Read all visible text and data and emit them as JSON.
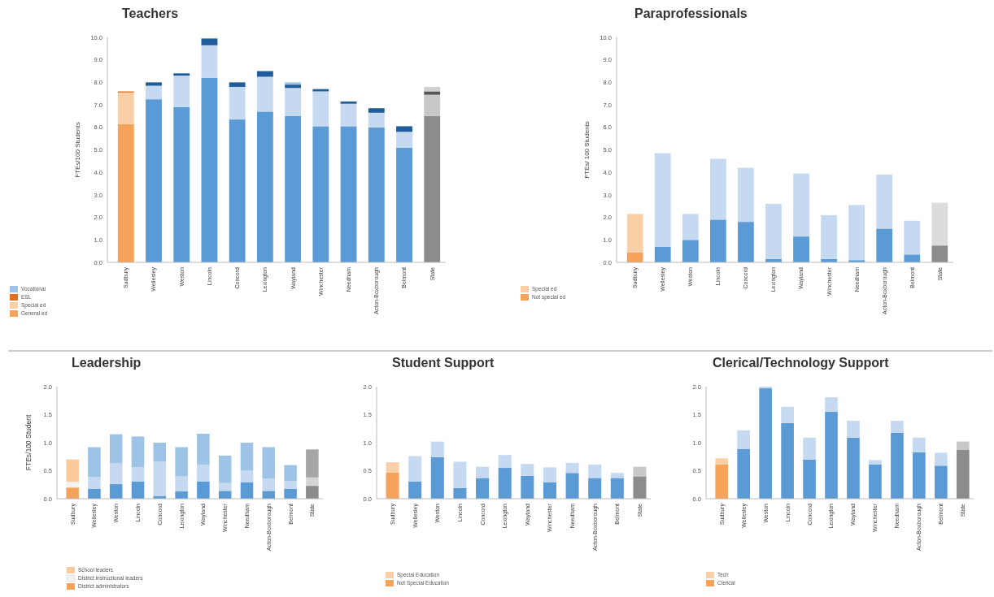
{
  "chart_data": [
    {
      "type": "bar",
      "title": "Teachers",
      "ylabel": "FTEs/100 Students",
      "stacked": true,
      "legend": "bottom left",
      "categories": [
        "Sudbury",
        "Wellesley",
        "Weston",
        "Lincoln",
        "Concord",
        "Lexington",
        "Wayland",
        "Winchester",
        "Needham",
        "Acton-Boxborough",
        "Belmont",
        "State"
      ],
      "ylim": [
        0,
        10
      ],
      "yticks": [
        {
          "value": 0,
          "label": "0.0"
        },
        {
          "value": 1,
          "label": "1.0"
        },
        {
          "value": 2,
          "label": "2.0"
        },
        {
          "value": 3,
          "label": "3.0"
        },
        {
          "value": 4,
          "label": "4.0"
        },
        {
          "value": 5,
          "label": "5.0"
        },
        {
          "value": 6,
          "label": "6.0"
        },
        {
          "value": 7,
          "label": "7.0"
        },
        {
          "value": 8,
          "label": "8.0"
        },
        {
          "value": 9,
          "label": "9.0"
        },
        {
          "value": 10,
          "label": "10.0"
        }
      ],
      "series": [
        {
          "name": "General ed",
          "color": "#f5a25a",
          "colors": [
            "#f5a25a",
            "#5b9bd5",
            "#5b9bd5",
            "#5b9bd5",
            "#5b9bd5",
            "#5b9bd5",
            "#5b9bd5",
            "#5b9bd5",
            "#5b9bd5",
            "#5b9bd5",
            "#5b9bd5",
            "#8c8c8c"
          ],
          "values": [
            6.15,
            7.25,
            6.9,
            8.2,
            6.35,
            6.7,
            6.5,
            6.05,
            6.05,
            6.0,
            5.1,
            6.5
          ]
        },
        {
          "name": "Special ed",
          "color": "#fbcfa6",
          "colors": [
            "#fbcfa6",
            "#c5daf0",
            "#c5daf0",
            "#c5daf0",
            "#c5daf0",
            "#c5daf0",
            "#c5daf0",
            "#c5daf0",
            "#c5daf0",
            "#c5daf0",
            "#c5daf0",
            "#c8c8c8"
          ],
          "values": [
            1.4,
            0.6,
            1.4,
            1.45,
            1.45,
            1.55,
            1.25,
            1.55,
            1.0,
            0.65,
            0.7,
            0.95
          ]
        },
        {
          "name": "ESL",
          "color": "#e0701e",
          "colors": [
            "#e0701e",
            "#1f5c99",
            "#1f5c99",
            "#1f5c99",
            "#1f5c99",
            "#1f5c99",
            "#1f5c99",
            "#1f5c99",
            "#1f5c99",
            "#1f5c99",
            "#1f5c99",
            "#555555"
          ],
          "values": [
            0.05,
            0.15,
            0.1,
            0.3,
            0.2,
            0.25,
            0.15,
            0.1,
            0.1,
            0.2,
            0.25,
            0.15
          ]
        },
        {
          "name": "Vocational",
          "color": "#9dc3e6",
          "colors": [
            "#f0c090",
            "#9dc3e6",
            "#9dc3e6",
            "#9dc3e6",
            "#9dc3e6",
            "#9dc3e6",
            "#9dc3e6",
            "#9dc3e6",
            "#9dc3e6",
            "#9dc3e6",
            "#9dc3e6",
            "#d0d0d0"
          ],
          "values": [
            0,
            0,
            0,
            0,
            0,
            0,
            0.1,
            0,
            0,
            0,
            0,
            0.2
          ]
        }
      ]
    },
    {
      "type": "bar",
      "title": "Paraprofessionals",
      "ylabel": "FTEs/ 100 Students",
      "stacked": true,
      "legend": "bottom left",
      "categories": [
        "Sudbury",
        "Wellesley",
        "Weston",
        "Lincoln",
        "Concord",
        "Lexington",
        "Wayland",
        "Winchester",
        "Needham",
        "Acton-Boxborough",
        "Belmont",
        "State"
      ],
      "ylim": [
        0,
        10
      ],
      "yticks": [
        {
          "value": 0,
          "label": "0.0"
        },
        {
          "value": 1,
          "label": "1.0"
        },
        {
          "value": 2,
          "label": "2.0"
        },
        {
          "value": 3,
          "label": "3.0"
        },
        {
          "value": 4,
          "label": "4.0"
        },
        {
          "value": 5,
          "label": "5.0"
        },
        {
          "value": 6,
          "label": "6.0"
        },
        {
          "value": 7,
          "label": "7.0"
        },
        {
          "value": 8,
          "label": "8.0"
        },
        {
          "value": 9,
          "label": "9.0"
        },
        {
          "value": 10,
          "label": "10.0"
        }
      ],
      "series": [
        {
          "name": "Not special ed",
          "color": "#f5a25a",
          "colors": [
            "#f5a25a",
            "#5b9bd5",
            "#5b9bd5",
            "#5b9bd5",
            "#5b9bd5",
            "#5b9bd5",
            "#5b9bd5",
            "#5b9bd5",
            "#5b9bd5",
            "#5b9bd5",
            "#5b9bd5",
            "#8c8c8c"
          ],
          "values": [
            0.45,
            0.7,
            1.0,
            1.9,
            1.8,
            0.15,
            1.15,
            0.15,
            0.1,
            1.5,
            0.35,
            0.75
          ]
        },
        {
          "name": "Special ed",
          "color": "#fbcfa6",
          "colors": [
            "#fbcfa6",
            "#c5daf0",
            "#c5daf0",
            "#c5daf0",
            "#c5daf0",
            "#c5daf0",
            "#c5daf0",
            "#c5daf0",
            "#c5daf0",
            "#c5daf0",
            "#c5daf0",
            "#dcdcdc"
          ],
          "values": [
            1.7,
            4.15,
            1.15,
            2.7,
            2.4,
            2.45,
            2.8,
            1.95,
            2.45,
            2.4,
            1.5,
            1.9
          ]
        }
      ]
    },
    {
      "type": "bar",
      "title": "Leadership",
      "ylabel": "FTEs/100 Student",
      "stacked": true,
      "legend": "bottom left",
      "categories": [
        "Sudbury",
        "Wellesley",
        "Weston",
        "Lincoln",
        "Concord",
        "Lexington",
        "Wayland",
        "Winchester",
        "Needham",
        "Acton-Boxborough",
        "Belmont",
        "State"
      ],
      "ylim": [
        0,
        2
      ],
      "yticks": [
        {
          "value": 0,
          "label": "0.0"
        },
        {
          "value": 0.5,
          "label": "0.5"
        },
        {
          "value": 1,
          "label": "1.0"
        },
        {
          "value": 1.5,
          "label": "1.5"
        },
        {
          "value": 2,
          "label": "2.0"
        }
      ],
      "series": [
        {
          "name": "District administrators",
          "color": "#f5a25a",
          "colors": [
            "#f5a25a",
            "#5b9bd5",
            "#5b9bd5",
            "#5b9bd5",
            "#5b9bd5",
            "#5b9bd5",
            "#5b9bd5",
            "#5b9bd5",
            "#5b9bd5",
            "#5b9bd5",
            "#5b9bd5",
            "#8c8c8c"
          ],
          "values": [
            0.2,
            0.18,
            0.26,
            0.31,
            0.05,
            0.13,
            0.31,
            0.14,
            0.29,
            0.14,
            0.18,
            0.23
          ]
        },
        {
          "name": "District instructional leaders",
          "color": "#f2f2f2",
          "colors": [
            "#f2f2f2",
            "#c5daf0",
            "#c5daf0",
            "#c5daf0",
            "#c5daf0",
            "#c5daf0",
            "#c5daf0",
            "#c5daf0",
            "#c5daf0",
            "#c5daf0",
            "#c5daf0",
            "#d6d6d6"
          ],
          "values": [
            0.1,
            0.21,
            0.37,
            0.25,
            0.61,
            0.27,
            0.3,
            0.14,
            0.21,
            0.22,
            0.14,
            0.15
          ]
        },
        {
          "name": "School leaders",
          "color": "#fbc99a",
          "colors": [
            "#fbc99a",
            "#9dc3e6",
            "#9dc3e6",
            "#9dc3e6",
            "#9dc3e6",
            "#9dc3e6",
            "#9dc3e6",
            "#9dc3e6",
            "#9dc3e6",
            "#9dc3e6",
            "#9dc3e6",
            "#a6a6a6"
          ],
          "values": [
            0.4,
            0.53,
            0.52,
            0.55,
            0.34,
            0.52,
            0.55,
            0.49,
            0.5,
            0.56,
            0.28,
            0.5
          ]
        }
      ]
    },
    {
      "type": "bar",
      "title": "Student Support",
      "stacked": true,
      "legend": "bottom left",
      "categories": [
        "Sudbury",
        "Wellesley",
        "Weston",
        "Lincoln",
        "Concord",
        "Lexington",
        "Wayland",
        "Winchester",
        "Needham",
        "Acton-Boxborough",
        "Belmont",
        "State"
      ],
      "ylim": [
        0,
        2
      ],
      "yticks": [
        {
          "value": 0,
          "label": "0.0"
        },
        {
          "value": 0.5,
          "label": "0.5"
        },
        {
          "value": 1,
          "label": "1.0"
        },
        {
          "value": 1.5,
          "label": "1.5"
        },
        {
          "value": 2,
          "label": "2.0"
        }
      ],
      "series": [
        {
          "name": "Not Special Education",
          "color": "#f5a25a",
          "colors": [
            "#f5a25a",
            "#5b9bd5",
            "#5b9bd5",
            "#5b9bd5",
            "#5b9bd5",
            "#5b9bd5",
            "#5b9bd5",
            "#5b9bd5",
            "#5b9bd5",
            "#5b9bd5",
            "#5b9bd5",
            "#8c8c8c"
          ],
          "values": [
            0.47,
            0.31,
            0.74,
            0.19,
            0.37,
            0.55,
            0.41,
            0.29,
            0.46,
            0.37,
            0.37,
            0.4
          ]
        },
        {
          "name": "Special Education",
          "color": "#fbcfa6",
          "colors": [
            "#fbcfa6",
            "#c5daf0",
            "#c5daf0",
            "#c5daf0",
            "#c5daf0",
            "#c5daf0",
            "#c5daf0",
            "#c5daf0",
            "#c5daf0",
            "#c5daf0",
            "#c5daf0",
            "#c8c8c8"
          ],
          "values": [
            0.18,
            0.45,
            0.28,
            0.47,
            0.2,
            0.23,
            0.21,
            0.27,
            0.18,
            0.24,
            0.09,
            0.17
          ]
        }
      ]
    },
    {
      "type": "bar",
      "title": "Clerical/Technology Support",
      "stacked": true,
      "legend": "bottom left",
      "categories": [
        "Sudbury",
        "Wellesley",
        "Weston",
        "Lincoln",
        "Concord",
        "Lexington",
        "Wayland",
        "Winchester",
        "Needham",
        "Acton-Boxborough",
        "Belmont",
        "State"
      ],
      "ylim": [
        0,
        2
      ],
      "yticks": [
        {
          "value": 0,
          "label": "0.0"
        },
        {
          "value": 0.5,
          "label": "0.5"
        },
        {
          "value": 1,
          "label": "1.0"
        },
        {
          "value": 1.5,
          "label": "1.5"
        },
        {
          "value": 2,
          "label": "2.0"
        }
      ],
      "series": [
        {
          "name": "Clerical",
          "color": "#f5a25a",
          "colors": [
            "#f5a25a",
            "#5b9bd5",
            "#5b9bd5",
            "#5b9bd5",
            "#5b9bd5",
            "#5b9bd5",
            "#5b9bd5",
            "#5b9bd5",
            "#5b9bd5",
            "#5b9bd5",
            "#5b9bd5",
            "#8c8c8c"
          ],
          "values": [
            0.61,
            0.89,
            1.97,
            1.35,
            0.7,
            1.55,
            1.09,
            0.61,
            1.18,
            0.83,
            0.59,
            0.87
          ]
        },
        {
          "name": "Tech",
          "color": "#fbcfa6",
          "colors": [
            "#fbcfa6",
            "#c5daf0",
            "#c5daf0",
            "#c5daf0",
            "#c5daf0",
            "#c5daf0",
            "#c5daf0",
            "#c5daf0",
            "#c5daf0",
            "#c5daf0",
            "#c5daf0",
            "#c8c8c8"
          ],
          "values": [
            0.11,
            0.33,
            0.03,
            0.29,
            0.39,
            0.26,
            0.3,
            0.08,
            0.21,
            0.26,
            0.23,
            0.15
          ]
        }
      ]
    }
  ]
}
